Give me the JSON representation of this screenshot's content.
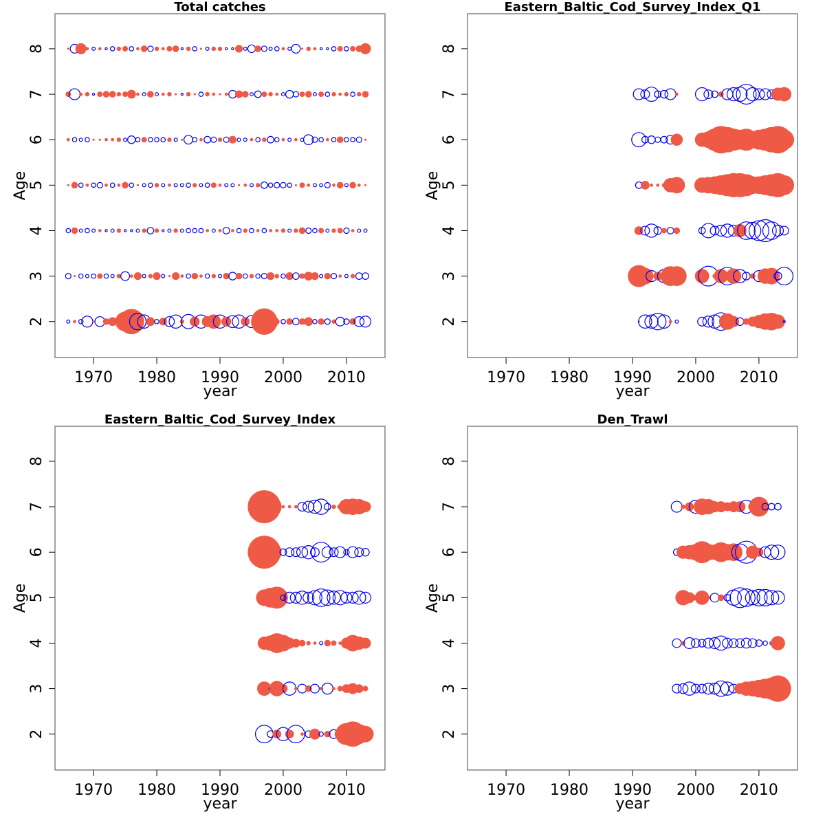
{
  "chart_data": [
    {
      "type": "bubble",
      "title": "Total catches",
      "xlabel": "year",
      "ylabel": "Age",
      "xlim": [
        1963.9,
        2016.1
      ],
      "ylim": [
        1.21,
        8.77
      ],
      "xticks": [
        1970,
        1980,
        1990,
        2000,
        2010
      ],
      "yticks": [
        2,
        3,
        4,
        5,
        6,
        7,
        8
      ],
      "positive_color": "#ee5a45",
      "negative_color": "#0000ee",
      "x": [
        1966,
        1967,
        1968,
        1969,
        1970,
        1971,
        1972,
        1973,
        1974,
        1975,
        1976,
        1977,
        1978,
        1979,
        1980,
        1981,
        1982,
        1983,
        1984,
        1985,
        1986,
        1987,
        1988,
        1989,
        1990,
        1991,
        1992,
        1993,
        1994,
        1995,
        1996,
        1997,
        1998,
        1999,
        2000,
        2001,
        2002,
        2003,
        2004,
        2005,
        2006,
        2007,
        2008,
        2009,
        2010,
        2011,
        2012,
        2013
      ],
      "y": [
        2,
        3,
        4,
        5,
        6,
        7,
        8
      ],
      "values": [
        [
          -0.3,
          0.3,
          -0.4,
          -1.0,
          0.2,
          -0.9,
          0.6,
          0.8,
          -0.6,
          1.8,
          2.3,
          -1.5,
          -1.2,
          0.8,
          -0.4,
          0.7,
          -0.9,
          -1.2,
          0.4,
          -1.3,
          0.9,
          -1.2,
          1.0,
          1.3,
          -1.2,
          0.9,
          -1.1,
          -1.2,
          0.8,
          -1.1,
          0.8,
          2.4,
          1.4,
          0.5,
          -0.4,
          0.6,
          -0.6,
          0.6,
          0.8,
          -0.4,
          0.6,
          -0.5,
          0.4,
          -0.8,
          -0.5,
          0.6,
          -0.9,
          -1.0
        ],
        [
          -0.5,
          0.2,
          -0.4,
          -0.3,
          -0.4,
          0.5,
          -0.4,
          -0.3,
          0.4,
          -0.8,
          0.3,
          0.7,
          -0.3,
          0.4,
          0.7,
          -0.3,
          0.2,
          0.7,
          0.3,
          -0.4,
          0.6,
          0.3,
          -0.4,
          0.4,
          -0.3,
          0.6,
          -0.7,
          0.6,
          -0.4,
          0.4,
          -0.4,
          -0.5,
          0.7,
          0.4,
          -0.4,
          0.7,
          -0.6,
          0.5,
          0.8,
          0.7,
          -0.3,
          0.6,
          -0.5,
          0.3,
          -0.3,
          0.4,
          -0.6,
          -0.6
        ],
        [
          -0.4,
          0.6,
          -0.3,
          -0.4,
          -0.3,
          0.3,
          -0.2,
          -0.3,
          0.4,
          -0.2,
          -0.2,
          -0.3,
          0.4,
          -0.6,
          0.4,
          -0.2,
          -0.3,
          0.4,
          -0.3,
          -0.4,
          -0.4,
          -0.4,
          0.3,
          -0.3,
          0.3,
          -0.6,
          0.3,
          -0.4,
          0.4,
          -0.4,
          0.3,
          -0.4,
          0.3,
          0.3,
          0.4,
          -0.3,
          0.4,
          0.6,
          -0.5,
          -0.4,
          0.5,
          -0.3,
          0.4,
          0.5,
          -0.5,
          0.3,
          -0.3,
          -0.3
        ],
        [
          0.2,
          0.6,
          -0.4,
          0.3,
          -0.4,
          -0.5,
          0.3,
          -0.4,
          0.3,
          0.6,
          -0.4,
          0.2,
          -0.3,
          -0.4,
          0.4,
          -0.3,
          0.3,
          -0.3,
          -0.3,
          -0.4,
          0.4,
          -0.3,
          -0.4,
          0.5,
          0.3,
          -0.3,
          -0.3,
          0.2,
          0.3,
          -0.3,
          0.4,
          -0.6,
          -0.4,
          -0.5,
          -0.5,
          -0.4,
          0.2,
          0.5,
          0.3,
          -0.3,
          -0.3,
          -0.5,
          0.3,
          0.6,
          -0.3,
          0.6,
          0.3,
          0.2
        ],
        [
          0.3,
          -0.4,
          -0.3,
          -0.4,
          0.2,
          0.2,
          0.3,
          0.3,
          0.4,
          -0.3,
          -0.7,
          -0.4,
          0.5,
          -0.4,
          -0.4,
          -0.4,
          0.4,
          -0.3,
          0.2,
          -0.8,
          -0.4,
          0.3,
          -0.6,
          -0.5,
          0.4,
          -0.5,
          0.7,
          -0.3,
          -0.3,
          0.3,
          -0.4,
          0.4,
          -0.6,
          -0.4,
          0.3,
          -0.3,
          0.3,
          -0.3,
          -0.9,
          -0.5,
          -0.4,
          0.3,
          -0.4,
          0.6,
          -0.4,
          -0.4,
          -0.5,
          0.2
        ],
        [
          0.5,
          -1.0,
          0.3,
          0.4,
          -0.2,
          0.5,
          0.6,
          0.6,
          0.4,
          0.5,
          0.8,
          0.3,
          -0.3,
          0.6,
          -0.3,
          0.3,
          0.4,
          0.2,
          -0.2,
          0.4,
          0.2,
          -0.4,
          0.4,
          0.3,
          0.2,
          0.3,
          -0.7,
          0.7,
          0.6,
          -0.3,
          -0.6,
          0.5,
          0.4,
          0.3,
          -0.3,
          -0.7,
          -0.5,
          0.5,
          0.6,
          -0.3,
          0.5,
          -0.4,
          0.4,
          0.3,
          0.4,
          -0.4,
          0.4,
          0.6
        ],
        [
          0.2,
          -0.8,
          1.0,
          0.3,
          -0.3,
          0.3,
          -0.2,
          -0.4,
          0.4,
          0.5,
          -0.4,
          0.3,
          0.6,
          -0.5,
          0.4,
          0.3,
          0.5,
          0.6,
          -0.2,
          0.4,
          -0.4,
          0.2,
          -0.3,
          0.4,
          0.4,
          -0.2,
          -0.2,
          0.7,
          -0.3,
          -0.7,
          0.6,
          -0.5,
          -0.3,
          -0.4,
          0.3,
          -0.3,
          -0.8,
          0.2,
          0.4,
          0.3,
          -0.2,
          -0.2,
          -0.4,
          0.5,
          -0.4,
          0.5,
          0.6,
          1.0
        ]
      ]
    },
    {
      "type": "bubble",
      "title": "Eastern_Baltic_Cod_Survey_Index_Q1",
      "xlabel": "year",
      "ylabel": "Age",
      "xlim": [
        1963.9,
        2016.1
      ],
      "ylim": [
        1.21,
        8.77
      ],
      "xticks": [
        1970,
        1980,
        1990,
        2000,
        2010
      ],
      "yticks": [
        2,
        3,
        4,
        5,
        6,
        7,
        8
      ],
      "positive_color": "#ee5a45",
      "negative_color": "#0000ee",
      "x": [
        1991,
        1992,
        1993,
        1994,
        1995,
        1996,
        1997,
        2001,
        2002,
        2003,
        2004,
        2005,
        2006,
        2007,
        2008,
        2009,
        2010,
        2011,
        2012,
        2013,
        2014
      ],
      "y": [
        2,
        3,
        4,
        5,
        6,
        7
      ],
      "values": [
        [
          0.2,
          -1.2,
          -1.2,
          -1.5,
          -1.2,
          0.3,
          -0.3,
          -0.8,
          -1.0,
          -1.2,
          -1.6,
          1.5,
          1.0,
          -0.7,
          0.6,
          0.9,
          1.2,
          1.5,
          1.6,
          1.3,
          -0.2
        ],
        [
          2.0,
          1.5,
          -1.0,
          0.8,
          -1.2,
          1.8,
          1.8,
          1.3,
          -1.8,
          0.4,
          1.3,
          -1.6,
          1.4,
          -1.2,
          -0.7,
          0.5,
          -1.0,
          1.4,
          1.5,
          -0.7,
          -1.6
        ],
        [
          0.8,
          -0.8,
          -1.2,
          -0.7,
          0.5,
          -0.6,
          0.6,
          -0.6,
          -1.3,
          -0.8,
          -1.0,
          -1.2,
          -1.0,
          1.2,
          -1.6,
          -1.5,
          -1.8,
          -2.0,
          -1.6,
          -1.0,
          -0.8
        ],
        [
          -0.6,
          0.8,
          0.3,
          0.3,
          0.4,
          1.3,
          1.5,
          1.4,
          1.5,
          1.6,
          1.8,
          2.0,
          2.2,
          2.2,
          2.0,
          1.6,
          1.6,
          1.8,
          2.0,
          2.2,
          1.8
        ],
        [
          -1.3,
          -0.6,
          -0.7,
          -0.5,
          -0.6,
          -0.8,
          1.1,
          1.3,
          1.5,
          2.0,
          2.5,
          2.3,
          2.0,
          1.8,
          2.0,
          1.5,
          1.8,
          2.0,
          2.3,
          2.5,
          1.8
        ],
        [
          -1.0,
          -0.8,
          -1.3,
          -0.6,
          -0.7,
          -1.0,
          0.3,
          -1.2,
          -0.8,
          -0.6,
          0.5,
          -1.0,
          -1.2,
          -1.3,
          -1.8,
          -1.2,
          -1.0,
          -1.0,
          -0.8,
          1.2,
          1.3
        ]
      ]
    },
    {
      "type": "bubble",
      "title": "Eastern_Baltic_Cod_Survey_Index",
      "xlabel": "year",
      "ylabel": "Age",
      "xlim": [
        1963.9,
        2016.1
      ],
      "ylim": [
        1.21,
        8.77
      ],
      "xticks": [
        1970,
        1980,
        1990,
        2000,
        2010
      ],
      "yticks": [
        2,
        3,
        4,
        5,
        6,
        7,
        8
      ],
      "positive_color": "#ee5a45",
      "negative_color": "#0000ee",
      "x": [
        1997,
        1998,
        1999,
        2000,
        2001,
        2002,
        2003,
        2004,
        2005,
        2006,
        2007,
        2008,
        2009,
        2010,
        2011,
        2012,
        2013
      ],
      "y": [
        2,
        3,
        4,
        5,
        6,
        7
      ],
      "values": [
        [
          -1.6,
          -0.6,
          0.8,
          -1.2,
          0.8,
          -1.6,
          0.3,
          -0.6,
          1.0,
          -0.4,
          0.6,
          -0.8,
          1.0,
          2.0,
          2.3,
          1.8,
          1.5
        ],
        [
          1.3,
          -0.3,
          1.4,
          0.8,
          -1.2,
          0.3,
          -0.8,
          0.6,
          -0.8,
          0.3,
          -1.0,
          0.3,
          0.5,
          0.8,
          1.0,
          0.8,
          0.5
        ],
        [
          1.2,
          1.4,
          1.8,
          1.5,
          1.0,
          0.8,
          0.6,
          0.4,
          0.3,
          -0.3,
          0.6,
          0.5,
          0.3,
          1.0,
          1.5,
          1.2,
          1.0
        ],
        [
          1.5,
          1.8,
          2.0,
          -0.5,
          -1.0,
          -1.0,
          -1.2,
          -1.0,
          -1.3,
          -1.6,
          -1.4,
          -1.2,
          -1.3,
          -1.0,
          -1.0,
          -1.2,
          -1.0
        ],
        [
          3.0,
          2.0,
          0.6,
          -0.6,
          -0.8,
          -0.8,
          -1.0,
          -1.2,
          -0.8,
          -1.8,
          -1.0,
          -0.8,
          -1.0,
          -0.5,
          -1.0,
          -0.8,
          -0.7
        ],
        [
          3.0,
          2.0,
          0.6,
          0.3,
          0.3,
          0.3,
          -0.8,
          -1.0,
          -1.2,
          -1.4,
          -0.6,
          0.4,
          0.5,
          1.4,
          1.5,
          1.4,
          1.0
        ]
      ]
    },
    {
      "type": "bubble",
      "title": "Den_Trawl",
      "xlabel": "year",
      "ylabel": "Age",
      "xlim": [
        1963.9,
        2016.1
      ],
      "ylim": [
        1.21,
        8.77
      ],
      "xticks": [
        1970,
        1980,
        1990,
        2000,
        2010
      ],
      "yticks": [
        2,
        3,
        4,
        5,
        6,
        7,
        8
      ],
      "positive_color": "#ee5a45",
      "negative_color": "#0000ee",
      "x": [
        1997,
        1998,
        1999,
        2000,
        2001,
        2002,
        2003,
        2004,
        2005,
        2006,
        2007,
        2008,
        2009,
        2010,
        2011,
        2012,
        2013
      ],
      "y": [
        3,
        4,
        5,
        6,
        7
      ],
      "values": [
        [
          -0.8,
          -0.9,
          -1.2,
          -0.8,
          -0.8,
          -1.0,
          -1.0,
          -1.4,
          -1.2,
          -0.8,
          1.0,
          1.3,
          1.4,
          1.6,
          1.8,
          2.0,
          2.4
        ],
        [
          -0.8,
          0.4,
          -1.0,
          -0.8,
          -0.7,
          -0.9,
          -1.0,
          -1.3,
          -0.9,
          -0.8,
          -0.8,
          -0.9,
          -0.8,
          -0.6,
          -0.4,
          -0.3,
          1.3
        ],
        [
          0.2,
          1.4,
          1.0,
          0.5,
          1.3,
          0.3,
          -0.8,
          0.6,
          -0.6,
          -1.4,
          -1.8,
          -1.6,
          -1.3,
          -1.5,
          -1.5,
          -1.3,
          -1.2
        ],
        [
          -0.6,
          1.2,
          1.3,
          1.5,
          2.0,
          1.5,
          1.4,
          1.8,
          1.5,
          1.6,
          -1.5,
          -2.0,
          1.2,
          0.8,
          -1.0,
          -1.3,
          -1.3
        ],
        [
          -1.0,
          0.4,
          0.8,
          -1.2,
          1.5,
          1.4,
          1.0,
          1.0,
          0.8,
          1.0,
          1.0,
          -1.2,
          0.8,
          1.8,
          -0.6,
          -0.6,
          -0.6
        ]
      ]
    }
  ]
}
